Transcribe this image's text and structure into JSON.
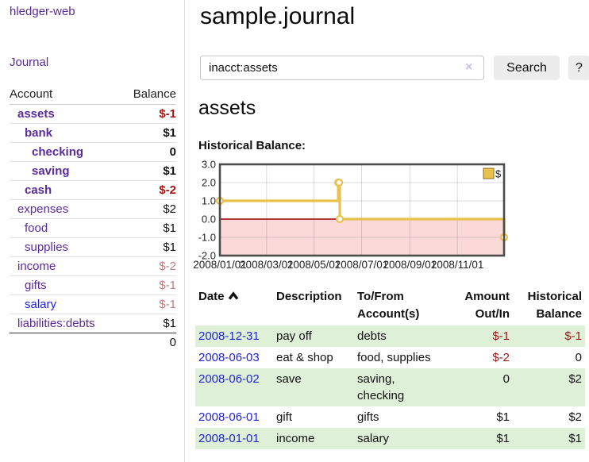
{
  "sidebar": {
    "brand": "hledger-web",
    "nav": [
      {
        "label": "Journal"
      }
    ],
    "accounts_table": {
      "headers": [
        "Account",
        "Balance"
      ],
      "rows": [
        {
          "label": "assets",
          "level": 1,
          "bold": true,
          "balance": "$-1",
          "balance_class": "neg"
        },
        {
          "label": "bank",
          "level": 2,
          "bold": true,
          "balance": "$1",
          "balance_class": "pos"
        },
        {
          "label": "checking",
          "level": 3,
          "bold": true,
          "balance": "0",
          "balance_class": "pos"
        },
        {
          "label": "saving",
          "level": 3,
          "bold": true,
          "balance": "$1",
          "balance_class": "pos"
        },
        {
          "label": "cash",
          "level": 2,
          "bold": true,
          "balance": "$-2",
          "balance_class": "neg"
        },
        {
          "label": "expenses",
          "level": 1,
          "bold": false,
          "balance": "$2",
          "balance_class": "pos"
        },
        {
          "label": "food",
          "level": 2,
          "bold": false,
          "balance": "$1",
          "balance_class": "pos"
        },
        {
          "label": "supplies",
          "level": 2,
          "bold": false,
          "balance": "$1",
          "balance_class": "pos"
        },
        {
          "label": "income",
          "level": 1,
          "bold": false,
          "balance": "$-2",
          "balance_class": "neg-muted"
        },
        {
          "label": "gifts",
          "level": 2,
          "bold": false,
          "balance": "$-1",
          "balance_class": "neg-muted"
        },
        {
          "label": "salary",
          "level": 2,
          "bold": false,
          "balance": "$-1",
          "balance_class": "neg-muted",
          "link_color": "blue"
        },
        {
          "label": "liabilities:debts",
          "level": 1,
          "bold": false,
          "balance": "$1",
          "balance_class": "pos"
        }
      ],
      "total": "0"
    }
  },
  "header": {
    "title": "sample.journal"
  },
  "search": {
    "value": "inacct:assets",
    "clear_icon": "×",
    "button": "Search",
    "help_button": "?"
  },
  "account_page": {
    "heading": "assets",
    "chart_title": "Historical Balance:"
  },
  "chart_data": {
    "type": "line",
    "step": true,
    "title": "Historical Balance:",
    "legend": [
      "$"
    ],
    "x": [
      "2008-01-01",
      "2008-06-01",
      "2008-06-02",
      "2008-06-03",
      "2008-12-31"
    ],
    "values": [
      1,
      2,
      2,
      0,
      -1
    ],
    "ylim": [
      -2,
      3
    ],
    "yticks": [
      "3.0",
      "2.0",
      "1.0",
      "0.0",
      "-1.0",
      "-2.0"
    ],
    "xticks": [
      "2008/01/01",
      "2008/03/01",
      "2008/05/01",
      "2008/07/01",
      "2008/09/01",
      "2008/11/01"
    ],
    "x_range": [
      "2008-01-01",
      "2008-12-31"
    ],
    "grid": true,
    "legend_position": "top-right"
  },
  "register": {
    "headers": [
      {
        "label": "Date",
        "align": "left",
        "sort": "asc"
      },
      {
        "label": "Description",
        "align": "left"
      },
      {
        "label": "To/From\nAccount(s)",
        "align": "left"
      },
      {
        "label": "Amount\nOut/In",
        "align": "right"
      },
      {
        "label": "Historical\nBalance",
        "align": "right"
      }
    ],
    "rows": [
      {
        "date": "2008-12-31",
        "description": "pay off",
        "accounts": "debts",
        "amount": "$-1",
        "amount_class": "neg",
        "balance": "$-1",
        "balance_class": "neg"
      },
      {
        "date": "2008-06-03",
        "description": "eat & shop",
        "accounts": "food, supplies",
        "amount": "$-2",
        "amount_class": "neg",
        "balance": "0",
        "balance_class": "pos"
      },
      {
        "date": "2008-06-02",
        "description": "save",
        "accounts": "saving, checking",
        "amount": "0",
        "amount_class": "pos",
        "balance": "$2",
        "balance_class": "pos"
      },
      {
        "date": "2008-06-01",
        "description": "gift",
        "accounts": "gifts",
        "amount": "$1",
        "amount_class": "pos",
        "balance": "$2",
        "balance_class": "pos"
      },
      {
        "date": "2008-01-01",
        "description": "income",
        "accounts": "salary",
        "amount": "$1",
        "amount_class": "pos",
        "balance": "$1",
        "balance_class": "pos"
      }
    ]
  },
  "colors": {
    "accent_purple": "#5b2a9b",
    "link_blue": "#2222dd",
    "negative": "#9e1414",
    "negative_muted": "#bd7f7f",
    "row_green": "#dff0d8",
    "chart_line": "#e8c24d",
    "chart_negative_bg": "#fbd9d9",
    "zero_line": "#990000",
    "chart_frame": "#4c4c4c"
  }
}
